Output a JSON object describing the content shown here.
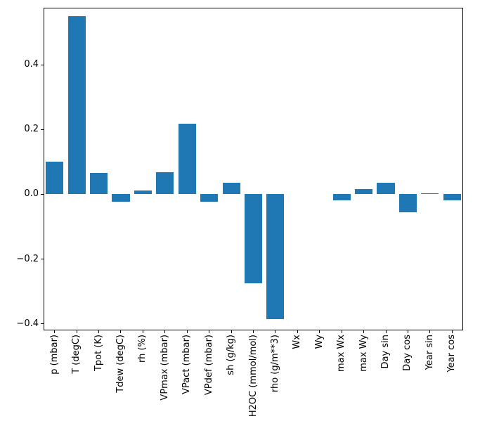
{
  "chart_data": {
    "type": "bar",
    "title": "",
    "xlabel": "",
    "ylabel": "",
    "legend": "none",
    "grid": false,
    "bar_color": "#1f77b4",
    "axis_color": "#000000",
    "ylim": [
      -0.42,
      0.576
    ],
    "yticks": [
      -0.4,
      -0.2,
      0.0,
      0.2,
      0.4
    ],
    "ytick_labels": [
      "−0.4",
      "−0.2",
      "0.0",
      "0.2",
      "0.4"
    ],
    "categories": [
      "p (mbar)",
      "T (degC)",
      "Tpot (K)",
      "Tdew (degC)",
      "rh (%)",
      "VPmax (mbar)",
      "VPact (mbar)",
      "VPdef (mbar)",
      "sh (g/kg)",
      "H2OC (mmol/mol)",
      "rho (g/m**3)",
      "Wx",
      "Wy",
      "max Wx",
      "max Wy",
      "Day sin",
      "Day cos",
      "Year sin",
      "Year cos"
    ],
    "values": [
      0.1,
      0.55,
      0.065,
      -0.022,
      0.012,
      0.068,
      0.218,
      -0.022,
      0.035,
      -0.275,
      -0.385,
      0.0,
      0.0,
      -0.018,
      0.016,
      0.035,
      -0.055,
      0.004,
      -0.018
    ]
  }
}
